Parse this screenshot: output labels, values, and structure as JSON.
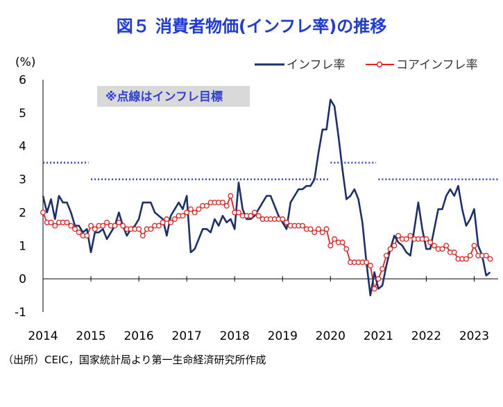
{
  "title": "図５ 消費者物価(インフレ率)の推移",
  "source": "（出所）CEIC，国家統計局より第一生命経済研究所作成",
  "annotation": "※点線はインフレ目標",
  "colors": {
    "title": "#1f3bd6",
    "inflation": "#1a2f6e",
    "core": "#e8201e",
    "target": "#2f3fd6",
    "annotation_bg": "#d9d9d9"
  },
  "chart_data": {
    "type": "line",
    "ylabel": "(%)",
    "ylim": [
      -1,
      6
    ],
    "yticks": [
      6,
      5,
      4,
      3,
      2,
      1,
      0,
      -1
    ],
    "xlim": [
      2014.0,
      2023.5
    ],
    "xticks": [
      "2014",
      "2015",
      "2016",
      "2017",
      "2018",
      "2019",
      "2020",
      "2021",
      "2022",
      "2023"
    ],
    "series": [
      {
        "name": "インフレ率",
        "start": 2014.0,
        "step_months": 1,
        "values": [
          2.5,
          2.0,
          2.4,
          1.8,
          2.5,
          2.3,
          2.3,
          2.0,
          1.6,
          1.6,
          1.4,
          1.5,
          0.8,
          1.4,
          1.4,
          1.5,
          1.2,
          1.4,
          1.6,
          2.0,
          1.6,
          1.3,
          1.5,
          1.6,
          1.8,
          2.3,
          2.3,
          2.3,
          2.0,
          1.9,
          1.8,
          1.3,
          1.9,
          2.1,
          2.3,
          2.1,
          2.5,
          0.8,
          0.9,
          1.2,
          1.5,
          1.5,
          1.4,
          1.8,
          1.6,
          1.9,
          1.7,
          1.8,
          1.5,
          2.9,
          2.1,
          1.8,
          1.8,
          1.9,
          2.1,
          2.3,
          2.5,
          2.5,
          2.2,
          1.9,
          1.7,
          1.5,
          2.3,
          2.5,
          2.7,
          2.7,
          2.8,
          2.8,
          3.0,
          3.8,
          4.5,
          4.5,
          5.4,
          5.2,
          4.3,
          3.3,
          2.4,
          2.5,
          2.7,
          2.4,
          1.7,
          0.5,
          -0.5,
          0.2,
          -0.3,
          -0.2,
          0.4,
          0.9,
          1.3,
          1.1,
          1.0,
          0.8,
          0.7,
          1.5,
          2.3,
          1.5,
          0.9,
          0.9,
          1.5,
          2.1,
          2.1,
          2.5,
          2.7,
          2.5,
          2.8,
          2.1,
          1.6,
          1.8,
          2.1,
          1.0,
          0.7,
          0.1,
          0.2
        ]
      },
      {
        "name": "コアインフレ率",
        "start": 2014.0,
        "step_months": 1,
        "values": [
          2.0,
          1.7,
          1.7,
          1.6,
          1.7,
          1.7,
          1.7,
          1.6,
          1.5,
          1.4,
          1.3,
          1.3,
          1.6,
          1.5,
          1.6,
          1.6,
          1.7,
          1.6,
          1.6,
          1.7,
          1.6,
          1.5,
          1.5,
          1.5,
          1.5,
          1.3,
          1.5,
          1.5,
          1.6,
          1.6,
          1.7,
          1.8,
          1.7,
          1.8,
          1.9,
          1.9,
          2.0,
          2.1,
          2.0,
          2.1,
          2.2,
          2.2,
          2.3,
          2.3,
          2.3,
          2.3,
          2.2,
          2.5,
          2.0,
          2.0,
          1.9,
          1.9,
          1.9,
          2.0,
          1.9,
          1.8,
          1.8,
          1.8,
          1.8,
          1.8,
          1.8,
          1.7,
          1.6,
          1.6,
          1.6,
          1.6,
          1.5,
          1.5,
          1.4,
          1.5,
          1.4,
          1.5,
          1.0,
          1.2,
          1.1,
          1.1,
          0.9,
          0.5,
          0.5,
          0.5,
          0.5,
          0.5,
          0.4,
          -0.3,
          0.0,
          0.3,
          0.7,
          0.9,
          1.0,
          1.3,
          1.2,
          1.2,
          1.3,
          1.2,
          1.2,
          1.2,
          1.2,
          1.1,
          1.0,
          0.9,
          0.9,
          1.0,
          0.8,
          0.8,
          0.6,
          0.6,
          0.6,
          0.7,
          1.0,
          0.7,
          0.7,
          0.7,
          0.6
        ]
      }
    ],
    "targets": [
      {
        "from": 2014.0,
        "to": 2014.95,
        "value": 3.5
      },
      {
        "from": 2015.0,
        "to": 2019.95,
        "value": 3.0
      },
      {
        "from": 2020.0,
        "to": 2020.95,
        "value": 3.5
      },
      {
        "from": 2021.0,
        "to": 2023.5,
        "value": 3.0
      }
    ]
  }
}
